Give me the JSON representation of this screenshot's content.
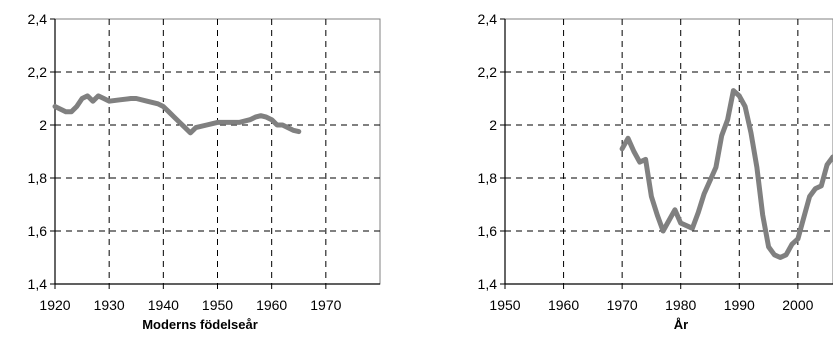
{
  "chart_data": [
    {
      "type": "line",
      "title": "",
      "xlabel": "Moderns födelseår",
      "ylabel": "",
      "xlim": [
        1920,
        1980
      ],
      "ylim": [
        1.4,
        2.4
      ],
      "x_ticks": [
        "1920",
        "1930",
        "1940",
        "1950",
        "1960",
        "1970"
      ],
      "y_ticks": [
        "1,4",
        "1,6",
        "1,8",
        "2",
        "2,2",
        "2,4"
      ],
      "grid": "dashed",
      "line_color": "#808080",
      "series": [
        {
          "x": [
            1920,
            1922,
            1923,
            1924,
            1925,
            1926,
            1927,
            1928,
            1929,
            1930,
            1932,
            1934,
            1935,
            1937,
            1939,
            1940,
            1941,
            1942,
            1943,
            1944,
            1945,
            1946,
            1948,
            1950,
            1952,
            1954,
            1956,
            1957,
            1958,
            1959,
            1960,
            1961,
            1962,
            1963,
            1964,
            1965
          ],
          "values": [
            2.07,
            2.05,
            2.05,
            2.07,
            2.1,
            2.11,
            2.09,
            2.11,
            2.1,
            2.09,
            2.095,
            2.1,
            2.1,
            2.09,
            2.08,
            2.07,
            2.05,
            2.03,
            2.01,
            1.99,
            1.97,
            1.99,
            2.0,
            2.01,
            2.01,
            2.01,
            2.02,
            2.03,
            2.035,
            2.03,
            2.02,
            2.0,
            2.0,
            1.99,
            1.98,
            1.975
          ]
        }
      ]
    },
    {
      "type": "line",
      "title": "",
      "xlabel": "År",
      "ylabel": "",
      "xlim": [
        1950,
        2006
      ],
      "ylim": [
        1.4,
        2.4
      ],
      "x_ticks": [
        "1950",
        "1960",
        "1970",
        "1980",
        "1990",
        "2000"
      ],
      "y_ticks": [
        "1,4",
        "1,6",
        "1,8",
        "2",
        "2,2",
        "2,4"
      ],
      "grid": "dashed",
      "line_color": "#808080",
      "series": [
        {
          "x": [
            1970,
            1971,
            1972,
            1973,
            1974,
            1975,
            1976,
            1977,
            1978,
            1979,
            1980,
            1981,
            1982,
            1983,
            1984,
            1985,
            1986,
            1987,
            1988,
            1989,
            1990,
            1991,
            1992,
            1993,
            1994,
            1995,
            1996,
            1997,
            1998,
            1999,
            2000,
            2001,
            2002,
            2003,
            2004,
            2005,
            2006
          ],
          "values": [
            1.91,
            1.95,
            1.9,
            1.86,
            1.87,
            1.73,
            1.66,
            1.6,
            1.64,
            1.68,
            1.63,
            1.62,
            1.61,
            1.67,
            1.74,
            1.79,
            1.84,
            1.96,
            2.02,
            2.13,
            2.11,
            2.07,
            1.97,
            1.84,
            1.66,
            1.54,
            1.51,
            1.5,
            1.51,
            1.55,
            1.57,
            1.65,
            1.73,
            1.76,
            1.77,
            1.85,
            1.88
          ]
        }
      ]
    }
  ]
}
